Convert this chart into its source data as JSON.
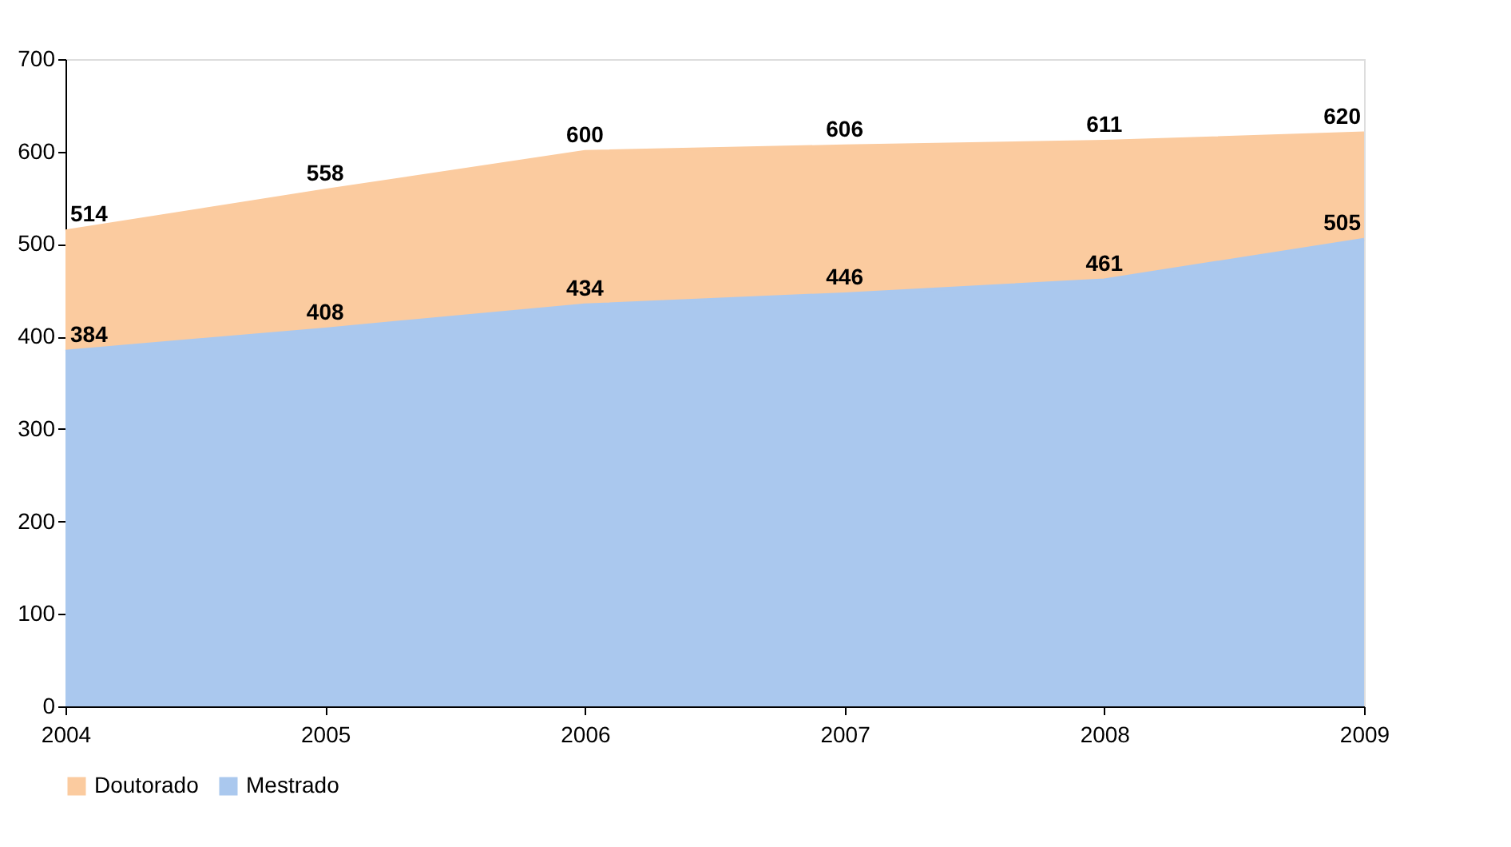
{
  "chart_data": {
    "type": "area",
    "categories": [
      "2004",
      "2005",
      "2006",
      "2007",
      "2008",
      "2009"
    ],
    "series": [
      {
        "name": "Doutorado",
        "color": "#fbcb9f",
        "values": [
          514,
          558,
          600,
          606,
          611,
          620
        ]
      },
      {
        "name": "Mestrado",
        "color": "#aac8ee",
        "values": [
          384,
          408,
          434,
          446,
          461,
          505
        ]
      }
    ],
    "ylim": [
      0,
      700
    ],
    "yticks": [
      0,
      100,
      200,
      300,
      400,
      500,
      600,
      700
    ],
    "grid": false,
    "legend": "bottom",
    "data_labels": true
  }
}
